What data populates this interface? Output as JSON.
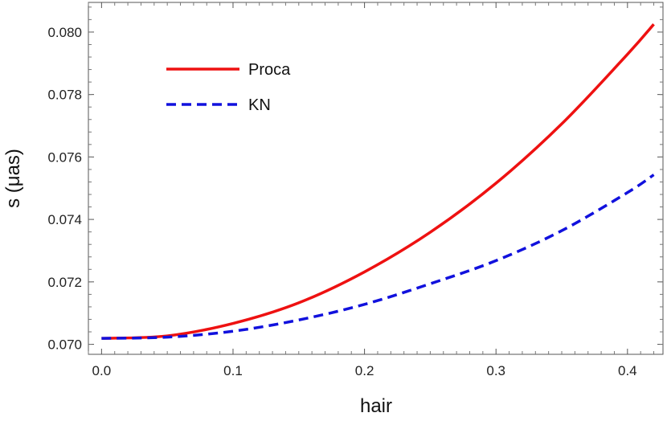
{
  "chart_data": {
    "type": "line",
    "xlabel": "hair",
    "ylabel": "s (μas)",
    "xlim": [
      -0.01,
      0.427
    ],
    "ylim": [
      0.06968,
      0.08095
    ],
    "x_ticks": [
      0.0,
      0.1,
      0.2,
      0.3,
      0.4
    ],
    "x_tick_labels": [
      "0.0",
      "0.1",
      "0.2",
      "0.3",
      "0.4"
    ],
    "y_ticks": [
      0.07,
      0.072,
      0.074,
      0.076,
      0.078,
      0.08
    ],
    "y_tick_labels": [
      "0.070",
      "0.072",
      "0.074",
      "0.076",
      "0.078",
      "0.080"
    ],
    "grid": false,
    "legend_position": "top-left",
    "series": [
      {
        "name": "Proca",
        "color": "#ee1111",
        "style": "solid",
        "x": [
          0.0,
          0.05,
          0.1,
          0.15,
          0.2,
          0.25,
          0.3,
          0.35,
          0.4,
          0.42
        ],
        "y": [
          0.07019,
          0.07027,
          0.07067,
          0.07133,
          0.07232,
          0.07359,
          0.07516,
          0.07706,
          0.07929,
          0.08025
        ]
      },
      {
        "name": "KN",
        "color": "#1111dd",
        "style": "dashed",
        "x": [
          0.0,
          0.05,
          0.1,
          0.15,
          0.2,
          0.25,
          0.3,
          0.35,
          0.4,
          0.42
        ],
        "y": [
          0.07019,
          0.07023,
          0.07042,
          0.07078,
          0.07128,
          0.07194,
          0.07268,
          0.07364,
          0.07486,
          0.07543
        ]
      }
    ]
  }
}
